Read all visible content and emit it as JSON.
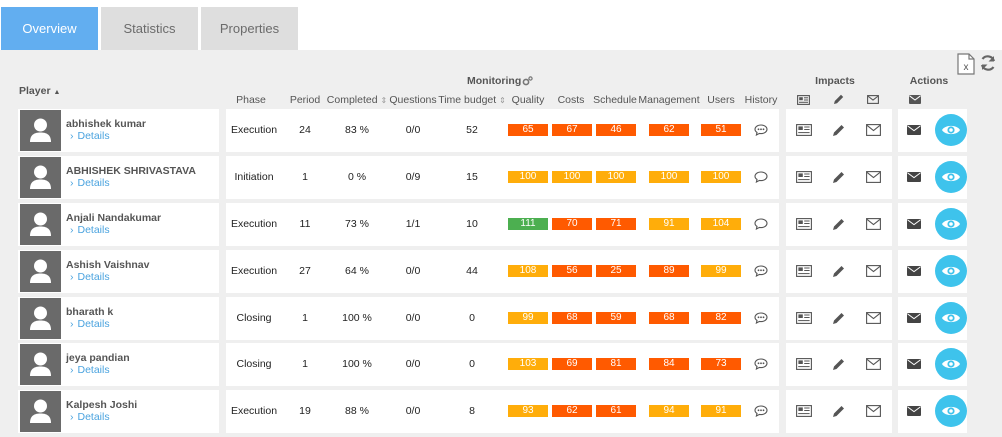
{
  "tabs": [
    {
      "label": "Overview",
      "active": true
    },
    {
      "label": "Statistics",
      "active": false
    },
    {
      "label": "Properties",
      "active": false
    }
  ],
  "toolbar": {
    "export_icon": "excel-export-icon",
    "refresh_icon": "refresh-icon"
  },
  "headers": {
    "player": "Player",
    "monitoring": "Monitoring",
    "impacts": "Impacts",
    "actions": "Actions",
    "phase": "Phase",
    "period": "Period",
    "completed": "Completed",
    "questions": "Questions",
    "time_budget": "Time budget",
    "quality": "Quality",
    "costs": "Costs",
    "schedule": "Schedule",
    "management": "Management",
    "users": "Users",
    "history": "History"
  },
  "colors": {
    "red": "#ff5a00",
    "orange": "#ffad0a",
    "green": "#4caf50",
    "accent": "#62aef0",
    "eye": "#3ec3ec"
  },
  "players": [
    {
      "name": "abhishek kumar",
      "details": "Details",
      "phase": "Execution",
      "period": "24",
      "completed": "83 %",
      "questions": "0/0",
      "time_budget": "52",
      "scores": [
        {
          "v": "65",
          "c": "red"
        },
        {
          "v": "67",
          "c": "red"
        },
        {
          "v": "46",
          "c": "red"
        },
        {
          "v": "62",
          "c": "red"
        },
        {
          "v": "51",
          "c": "red"
        }
      ],
      "history_dots": true
    },
    {
      "name": "ABHISHEK SHRIVASTAVA",
      "details": "Details",
      "phase": "Initiation",
      "period": "1",
      "completed": "0 %",
      "questions": "0/9",
      "time_budget": "15",
      "scores": [
        {
          "v": "100",
          "c": "orange"
        },
        {
          "v": "100",
          "c": "orange"
        },
        {
          "v": "100",
          "c": "orange"
        },
        {
          "v": "100",
          "c": "orange"
        },
        {
          "v": "100",
          "c": "orange"
        }
      ],
      "history_dots": false
    },
    {
      "name": "Anjali Nandakumar",
      "details": "Details",
      "phase": "Execution",
      "period": "11",
      "completed": "73 %",
      "questions": "1/1",
      "time_budget": "10",
      "scores": [
        {
          "v": "111",
          "c": "green"
        },
        {
          "v": "70",
          "c": "red"
        },
        {
          "v": "71",
          "c": "red"
        },
        {
          "v": "91",
          "c": "orange"
        },
        {
          "v": "104",
          "c": "orange"
        }
      ],
      "history_dots": false
    },
    {
      "name": "Ashish Vaishnav",
      "details": "Details",
      "phase": "Execution",
      "period": "27",
      "completed": "64 %",
      "questions": "0/0",
      "time_budget": "44",
      "scores": [
        {
          "v": "108",
          "c": "orange"
        },
        {
          "v": "56",
          "c": "red"
        },
        {
          "v": "25",
          "c": "red"
        },
        {
          "v": "89",
          "c": "red"
        },
        {
          "v": "99",
          "c": "orange"
        }
      ],
      "history_dots": true
    },
    {
      "name": "bharath k",
      "details": "Details",
      "phase": "Closing",
      "period": "1",
      "completed": "100 %",
      "questions": "0/0",
      "time_budget": "0",
      "scores": [
        {
          "v": "99",
          "c": "orange"
        },
        {
          "v": "68",
          "c": "red"
        },
        {
          "v": "59",
          "c": "red"
        },
        {
          "v": "68",
          "c": "red"
        },
        {
          "v": "82",
          "c": "red"
        }
      ],
      "history_dots": true
    },
    {
      "name": "jeya pandian",
      "details": "Details",
      "phase": "Closing",
      "period": "1",
      "completed": "100 %",
      "questions": "0/0",
      "time_budget": "0",
      "scores": [
        {
          "v": "103",
          "c": "orange"
        },
        {
          "v": "69",
          "c": "red"
        },
        {
          "v": "81",
          "c": "red"
        },
        {
          "v": "84",
          "c": "red"
        },
        {
          "v": "73",
          "c": "red"
        }
      ],
      "history_dots": true
    },
    {
      "name": "Kalpesh Joshi",
      "details": "Details",
      "phase": "Execution",
      "period": "19",
      "completed": "88 %",
      "questions": "0/0",
      "time_budget": "8",
      "scores": [
        {
          "v": "93",
          "c": "orange"
        },
        {
          "v": "62",
          "c": "red"
        },
        {
          "v": "61",
          "c": "red"
        },
        {
          "v": "94",
          "c": "orange"
        },
        {
          "v": "91",
          "c": "orange"
        }
      ],
      "history_dots": true
    }
  ]
}
